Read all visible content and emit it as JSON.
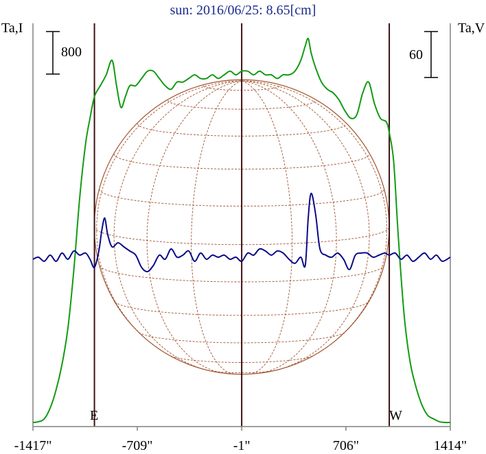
{
  "title": "sun: 2016/06/25: 8.65[cm]",
  "chart_data": {
    "type": "line",
    "title": "sun: 2016/06/25: 8.65[cm]",
    "left_axis_label": "Ta,I",
    "right_axis_label": "Ta,V",
    "left_scale_bar": "800",
    "right_scale_bar": "60",
    "limb_labels": {
      "east": "E",
      "west": "W"
    },
    "x_ticks": [
      "-1417\"",
      "-709\"",
      "-1\"",
      "706\"",
      "1414\""
    ],
    "x_tick_values": [
      -1417,
      -709,
      -1,
      706,
      1414
    ],
    "xlim": [
      -1417,
      1414
    ],
    "vertical_markers": [
      -1000,
      -1,
      1000
    ],
    "colors": {
      "intensity": "#129a12",
      "polarization": "#0a0a8a",
      "disk": "#a0522d",
      "markers": "#3a1010",
      "title": "#1a2a8c"
    },
    "series": [
      {
        "key": "intensity",
        "x": [
          -1417,
          -1380,
          -1340,
          -1300,
          -1260,
          -1220,
          -1180,
          -1140,
          -1100,
          -1060,
          -1030,
          -1000,
          -960,
          -920,
          -880,
          -850,
          -820,
          -790,
          -760,
          -720,
          -680,
          -640,
          -600,
          -560,
          -520,
          -480,
          -440,
          -400,
          -360,
          -320,
          -280,
          -240,
          -200,
          -160,
          -120,
          -80,
          -40,
          -1,
          40,
          80,
          120,
          160,
          200,
          240,
          280,
          320,
          360,
          400,
          430,
          450,
          470,
          500,
          540,
          580,
          620,
          660,
          700,
          740,
          780,
          820,
          860,
          900,
          940,
          980,
          1000,
          1030,
          1060,
          1100,
          1140,
          1180,
          1220,
          1260,
          1300,
          1340,
          1380,
          1414
        ],
        "y": [
          0.0,
          0.002,
          0.01,
          0.04,
          0.09,
          0.16,
          0.26,
          0.42,
          0.62,
          0.77,
          0.84,
          0.9,
          0.93,
          0.96,
          1.0,
          0.93,
          0.87,
          0.9,
          0.93,
          0.93,
          0.95,
          0.97,
          0.97,
          0.95,
          0.93,
          0.92,
          0.94,
          0.94,
          0.95,
          0.96,
          0.95,
          0.95,
          0.96,
          0.95,
          0.96,
          0.97,
          0.96,
          0.97,
          0.97,
          0.96,
          0.97,
          0.96,
          0.96,
          0.95,
          0.96,
          0.96,
          0.97,
          1.0,
          1.04,
          1.06,
          1.02,
          0.98,
          0.94,
          0.92,
          0.91,
          0.89,
          0.86,
          0.84,
          0.85,
          0.91,
          0.94,
          0.88,
          0.84,
          0.83,
          0.8,
          0.72,
          0.52,
          0.3,
          0.17,
          0.1,
          0.05,
          0.02,
          0.01,
          0.002,
          0.0,
          0.0
        ]
      },
      {
        "key": "polarization",
        "x": [
          -1417,
          -1380,
          -1340,
          -1300,
          -1260,
          -1220,
          -1180,
          -1140,
          -1100,
          -1060,
          -1030,
          -1000,
          -970,
          -950,
          -930,
          -910,
          -880,
          -840,
          -800,
          -760,
          -720,
          -680,
          -640,
          -600,
          -560,
          -520,
          -480,
          -440,
          -400,
          -360,
          -320,
          -280,
          -240,
          -200,
          -160,
          -120,
          -80,
          -40,
          -1,
          40,
          80,
          120,
          160,
          200,
          240,
          280,
          320,
          360,
          400,
          430,
          450,
          470,
          500,
          530,
          570,
          610,
          650,
          690,
          730,
          770,
          810,
          850,
          890,
          930,
          970,
          1000,
          1040,
          1080,
          1120,
          1160,
          1200,
          1240,
          1280,
          1320,
          1360,
          1414
        ],
        "y": [
          0.0,
          0.01,
          -0.01,
          0.02,
          -0.01,
          0.03,
          0.0,
          0.04,
          0.02,
          0.03,
          0.0,
          -0.04,
          0.04,
          0.14,
          0.2,
          0.12,
          0.06,
          0.08,
          0.06,
          0.04,
          0.02,
          -0.04,
          -0.06,
          -0.03,
          0.02,
          0.0,
          0.05,
          0.01,
          0.02,
          0.04,
          -0.01,
          0.03,
          0.0,
          0.02,
          0.01,
          0.02,
          0.0,
          0.01,
          -0.01,
          0.03,
          0.02,
          0.05,
          0.04,
          0.02,
          0.04,
          0.03,
          0.0,
          -0.02,
          0.01,
          -0.03,
          0.2,
          0.32,
          0.22,
          0.05,
          0.02,
          0.01,
          0.03,
          0.0,
          -0.05,
          0.02,
          0.03,
          0.03,
          0.01,
          0.02,
          0.03,
          0.02,
          0.03,
          0.0,
          0.02,
          -0.01,
          0.01,
          0.03,
          0.0,
          0.02,
          -0.01,
          0.01
        ]
      }
    ]
  }
}
